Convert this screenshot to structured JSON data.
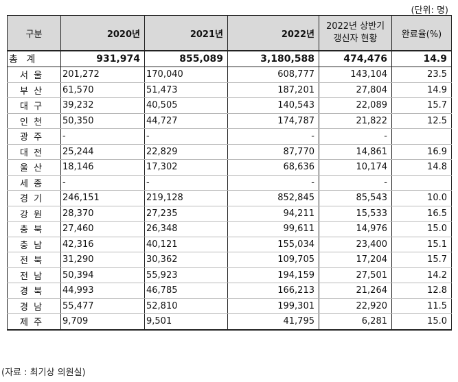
{
  "unit_note": "(단위: 명)",
  "headers": {
    "region": "구분",
    "y2020": "2020년",
    "y2021": "2021년",
    "y2022": "2022년",
    "renew_line1": "2022년 상반기",
    "renew_line2": "갱신자 현황",
    "rate": "완료율(%)"
  },
  "total": {
    "label": "총 계",
    "y2020": "931,974",
    "y2021": "855,089",
    "y2022": "3,180,588",
    "renew": "474,476",
    "rate": "14.9"
  },
  "rows": [
    {
      "region": "서 울",
      "y2020": "201,272",
      "y2021": "170,040",
      "y2022": "608,777",
      "renew": "143,104",
      "rate": "23.5"
    },
    {
      "region": "부 산",
      "y2020": "61,570",
      "y2021": "51,473",
      "y2022": "187,201",
      "renew": "27,804",
      "rate": "14.9"
    },
    {
      "region": "대 구",
      "y2020": "39,232",
      "y2021": "40,505",
      "y2022": "140,543",
      "renew": "22,089",
      "rate": "15.7"
    },
    {
      "region": "인 천",
      "y2020": "50,350",
      "y2021": "44,727",
      "y2022": "174,787",
      "renew": "21,822",
      "rate": "12.5"
    },
    {
      "region": "광 주",
      "y2020": "-",
      "y2021": "-",
      "y2022": "-",
      "renew": "-",
      "rate": ""
    },
    {
      "region": "대 전",
      "y2020": "25,244",
      "y2021": "22,829",
      "y2022": "87,770",
      "renew": "14,861",
      "rate": "16.9"
    },
    {
      "region": "울 산",
      "y2020": "18,146",
      "y2021": "17,302",
      "y2022": "68,636",
      "renew": "10,174",
      "rate": "14.8"
    },
    {
      "region": "세 종",
      "y2020": "-",
      "y2021": "-",
      "y2022": "-",
      "renew": "-",
      "rate": ""
    },
    {
      "region": "경 기",
      "y2020": "246,151",
      "y2021": "219,128",
      "y2022": "852,845",
      "renew": "85,543",
      "rate": "10.0"
    },
    {
      "region": "강 원",
      "y2020": "28,370",
      "y2021": "27,235",
      "y2022": "94,211",
      "renew": "15,533",
      "rate": "16.5"
    },
    {
      "region": "충 북",
      "y2020": "27,460",
      "y2021": "26,348",
      "y2022": "99,611",
      "renew": "14,976",
      "rate": "15.0"
    },
    {
      "region": "충 남",
      "y2020": "42,316",
      "y2021": "40,121",
      "y2022": "155,034",
      "renew": "23,400",
      "rate": "15.1"
    },
    {
      "region": "전 북",
      "y2020": "31,290",
      "y2021": "30,362",
      "y2022": "109,705",
      "renew": "17,204",
      "rate": "15.7"
    },
    {
      "region": "전 남",
      "y2020": "50,394",
      "y2021": "55,923",
      "y2022": "194,159",
      "renew": "27,501",
      "rate": "14.2"
    },
    {
      "region": "경 북",
      "y2020": "44,993",
      "y2021": "46,785",
      "y2022": "166,213",
      "renew": "21,264",
      "rate": "12.8"
    },
    {
      "region": "경 남",
      "y2020": "55,477",
      "y2021": "52,810",
      "y2022": "199,301",
      "renew": "22,920",
      "rate": "11.5"
    },
    {
      "region": "제 주",
      "y2020": "9,709",
      "y2021": "9,501",
      "y2022": "41,795",
      "renew": "6,281",
      "rate": "15.0"
    }
  ],
  "source_note": "(자료 : 최기상 의원실)",
  "colors": {
    "header_bg": "#d9d9d9",
    "border": "#222222",
    "inner_rule": "#b8b8b8"
  }
}
